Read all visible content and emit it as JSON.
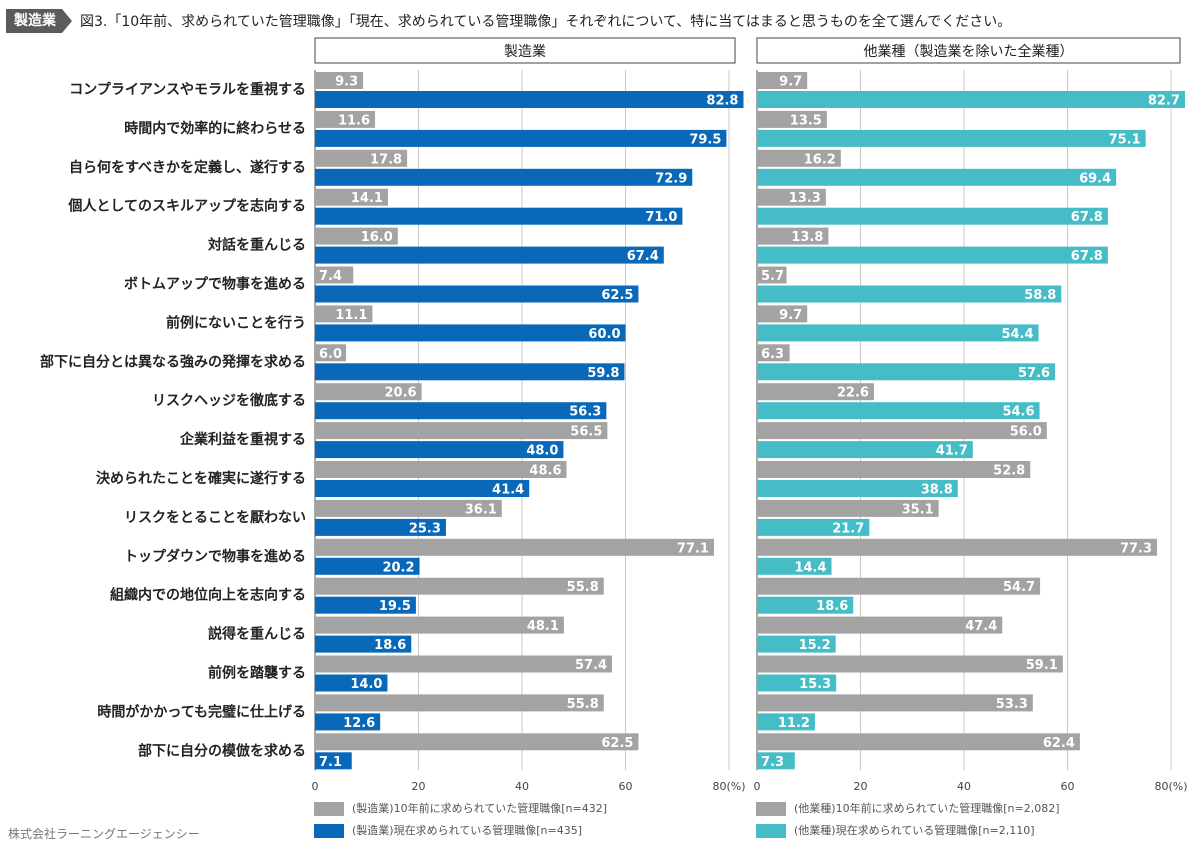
{
  "header": {
    "badge": "製造業",
    "title": "図3.「10年前、求められていた管理職像」「現在、求められている管理職像」それぞれについて、特に当てはまると思うものを全て選んでください。"
  },
  "footer": {
    "credit": "株式会社ラーニングエージェンシー"
  },
  "colors": {
    "past": "#a3a3a3",
    "mfg_now": "#0a68b8",
    "other_now": "#46bdc6"
  },
  "chart_data": {
    "type": "bar",
    "orientation": "horizontal",
    "categories": [
      "コンプライアンスやモラルを重視する",
      "時間内で効率的に終わらせる",
      "自ら何をすべきかを定義し、遂行する",
      "個人としてのスキルアップを志向する",
      "対話を重んじる",
      "ボトムアップで物事を進める",
      "前例にないことを行う",
      "部下に自分とは異なる強みの発揮を求める",
      "リスクヘッジを徹底する",
      "企業利益を重視する",
      "決められたことを確実に遂行する",
      "リスクをとることを厭わない",
      "トップダウンで物事を進める",
      "組織内での地位向上を志向する",
      "説得を重んじる",
      "前例を踏襲する",
      "時間がかかっても完璧に仕上げる",
      "部下に自分の模倣を求める"
    ],
    "xlim": [
      0,
      80
    ],
    "xticks": [
      "0",
      "20",
      "40",
      "60",
      "80(%)"
    ],
    "panels": [
      {
        "title": "製造業",
        "series": [
          {
            "name": "(製造業)10年前に求められていた管理職像[n=432]",
            "values": [
              9.3,
              11.6,
              17.8,
              14.1,
              16.0,
              7.4,
              11.1,
              6.0,
              20.6,
              56.5,
              48.6,
              36.1,
              77.1,
              55.8,
              48.1,
              57.4,
              55.8,
              62.5
            ]
          },
          {
            "name": "(製造業)現在求められている管理職像[n=435]",
            "values": [
              82.8,
              79.5,
              72.9,
              71.0,
              67.4,
              62.5,
              60.0,
              59.8,
              56.3,
              48.0,
              41.4,
              25.3,
              20.2,
              19.5,
              18.6,
              14.0,
              12.6,
              7.1
            ]
          }
        ]
      },
      {
        "title": "他業種（製造業を除いた全業種）",
        "series": [
          {
            "name": "(他業種)10年前に求められていた管理職像[n=2,082]",
            "values": [
              9.7,
              13.5,
              16.2,
              13.3,
              13.8,
              5.7,
              9.7,
              6.3,
              22.6,
              56.0,
              52.8,
              35.1,
              77.3,
              54.7,
              47.4,
              59.1,
              53.3,
              62.4
            ]
          },
          {
            "name": "(他業種)現在求められている管理職像[n=2,110]",
            "values": [
              82.7,
              75.1,
              69.4,
              67.8,
              67.8,
              58.8,
              54.4,
              57.6,
              54.6,
              41.7,
              38.8,
              21.7,
              14.4,
              18.6,
              15.2,
              15.3,
              11.2,
              7.3
            ]
          }
        ]
      }
    ]
  }
}
